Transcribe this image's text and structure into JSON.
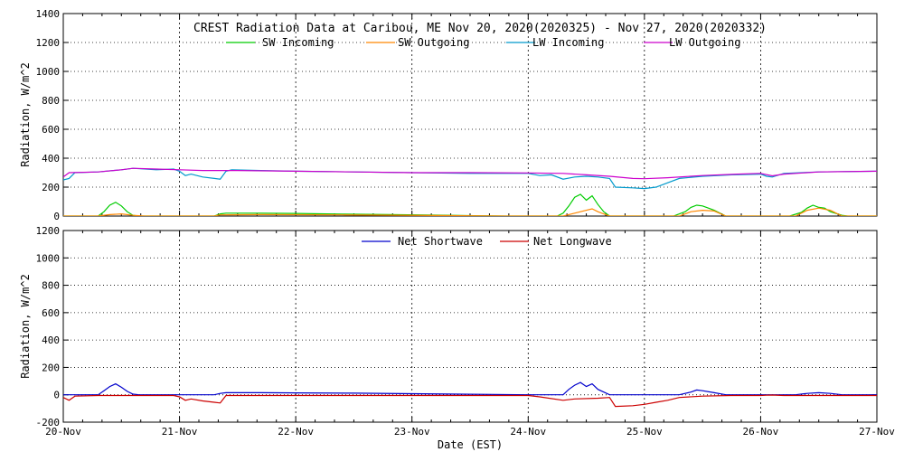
{
  "chart_data": [
    {
      "type": "line",
      "title": "CREST Radiation Data at Caribou, ME   Nov 20, 2020(2020325) - Nov 27, 2020(2020332)",
      "ylabel": "Radiation, W/m^2",
      "xlabel": "",
      "ylim": [
        0,
        1400
      ],
      "yticks": [
        0,
        200,
        400,
        600,
        800,
        1000,
        1200,
        1400
      ],
      "xlim": [
        0,
        7
      ],
      "grid": true,
      "legend": "top",
      "series": [
        {
          "name": "SW Incoming",
          "color": "#00cc00",
          "x": [
            0,
            0.3,
            0.35,
            0.4,
            0.45,
            0.5,
            0.55,
            0.6,
            0.65,
            0.7,
            0.75,
            1.0,
            1.3,
            1.35,
            1.4,
            1.7,
            2.0,
            2.4,
            2.8,
            3.2,
            3.6,
            3.8,
            3.85,
            4.0,
            4.25,
            4.3,
            4.35,
            4.4,
            4.45,
            4.5,
            4.55,
            4.6,
            4.65,
            4.7,
            4.8,
            5.0,
            5.25,
            5.35,
            5.4,
            5.45,
            5.5,
            5.55,
            5.6,
            5.7,
            5.8,
            6.0,
            6.25,
            6.35,
            6.4,
            6.45,
            6.5,
            6.55,
            6.6,
            6.7,
            6.75,
            7.0
          ],
          "y": [
            0,
            0,
            30,
            75,
            95,
            70,
            30,
            5,
            0,
            0,
            0,
            0,
            0,
            15,
            20,
            20,
            18,
            14,
            10,
            6,
            2,
            0,
            0,
            0,
            0,
            20,
            70,
            130,
            150,
            110,
            140,
            80,
            30,
            0,
            0,
            0,
            0,
            30,
            60,
            75,
            70,
            55,
            40,
            0,
            0,
            0,
            0,
            25,
            55,
            75,
            60,
            55,
            30,
            5,
            0,
            0
          ]
        },
        {
          "name": "SW Outgoing",
          "color": "#ff8800",
          "x": [
            0,
            0.3,
            0.4,
            0.5,
            0.6,
            0.7,
            1.3,
            1.35,
            1.7,
            2.4,
            3.2,
            3.8,
            4.3,
            4.4,
            4.5,
            4.55,
            4.6,
            4.7,
            5.3,
            5.4,
            5.5,
            5.6,
            5.7,
            6.3,
            6.4,
            6.5,
            6.6,
            6.7,
            7.0
          ],
          "y": [
            0,
            0,
            10,
            15,
            5,
            0,
            0,
            8,
            10,
            8,
            4,
            0,
            0,
            20,
            40,
            50,
            30,
            0,
            0,
            30,
            40,
            35,
            0,
            0,
            40,
            55,
            40,
            0,
            0
          ]
        },
        {
          "name": "LW Incoming",
          "color": "#0099cc",
          "x": [
            0,
            0.05,
            0.1,
            0.3,
            0.5,
            0.6,
            0.8,
            0.95,
            1.0,
            1.05,
            1.1,
            1.2,
            1.3,
            1.35,
            1.4,
            1.45,
            1.7,
            2.0,
            2.5,
            3.0,
            3.5,
            4.0,
            4.1,
            4.2,
            4.3,
            4.4,
            4.5,
            4.6,
            4.7,
            4.75,
            4.9,
            5.0,
            5.1,
            5.2,
            5.3,
            5.5,
            5.75,
            6.0,
            6.05,
            6.1,
            6.2,
            6.5,
            7.0
          ],
          "y": [
            250,
            260,
            300,
            305,
            320,
            330,
            320,
            325,
            310,
            280,
            290,
            270,
            260,
            255,
            310,
            320,
            315,
            310,
            305,
            300,
            295,
            295,
            280,
            285,
            255,
            270,
            275,
            270,
            260,
            200,
            195,
            190,
            200,
            230,
            260,
            275,
            285,
            290,
            275,
            270,
            295,
            305,
            310
          ]
        },
        {
          "name": "LW Outgoing",
          "color": "#cc00cc",
          "x": [
            0,
            0.05,
            0.3,
            0.5,
            0.6,
            0.8,
            1.0,
            1.2,
            1.5,
            2.0,
            2.5,
            3.0,
            3.5,
            4.0,
            4.3,
            4.5,
            4.7,
            4.9,
            5.0,
            5.2,
            5.5,
            5.8,
            6.0,
            6.1,
            6.2,
            6.5,
            7.0
          ],
          "y": [
            270,
            300,
            305,
            320,
            330,
            325,
            320,
            315,
            315,
            310,
            305,
            300,
            300,
            298,
            295,
            285,
            275,
            260,
            258,
            265,
            280,
            290,
            295,
            278,
            290,
            305,
            310
          ]
        }
      ]
    },
    {
      "type": "line",
      "title": "",
      "ylabel": "Radiation, W/m^2",
      "xlabel": "Date (EST)",
      "ylim": [
        -200,
        1200
      ],
      "yticks": [
        -200,
        0,
        200,
        400,
        600,
        800,
        1000,
        1200
      ],
      "xlim": [
        0,
        7
      ],
      "xticks": [
        "20-Nov",
        "21-Nov",
        "22-Nov",
        "23-Nov",
        "24-Nov",
        "25-Nov",
        "26-Nov",
        "27-Nov"
      ],
      "grid": true,
      "legend": "top",
      "series": [
        {
          "name": "Net Shortwave",
          "color": "#0000cc",
          "x": [
            0,
            0.3,
            0.35,
            0.4,
            0.45,
            0.5,
            0.55,
            0.6,
            0.65,
            0.7,
            1.3,
            1.35,
            1.4,
            1.7,
            2.0,
            2.5,
            3.0,
            3.5,
            4.0,
            4.3,
            4.35,
            4.4,
            4.45,
            4.5,
            4.55,
            4.6,
            4.65,
            4.7,
            5.3,
            5.4,
            5.45,
            5.5,
            5.6,
            5.7,
            6.3,
            6.4,
            6.5,
            6.6,
            6.7,
            7.0
          ],
          "y": [
            0,
            0,
            30,
            60,
            80,
            55,
            25,
            5,
            0,
            0,
            0,
            10,
            15,
            15,
            14,
            12,
            8,
            4,
            0,
            0,
            40,
            70,
            90,
            60,
            80,
            40,
            20,
            0,
            0,
            20,
            35,
            30,
            15,
            0,
            0,
            10,
            15,
            10,
            0,
            0
          ]
        },
        {
          "name": "Net Longwave",
          "color": "#cc0000",
          "x": [
            0,
            0.05,
            0.1,
            0.3,
            0.6,
            0.8,
            0.95,
            1.0,
            1.05,
            1.1,
            1.2,
            1.3,
            1.35,
            1.4,
            1.45,
            1.7,
            2.0,
            2.5,
            3.0,
            3.5,
            4.0,
            4.1,
            4.3,
            4.4,
            4.6,
            4.7,
            4.75,
            4.9,
            5.0,
            5.1,
            5.2,
            5.3,
            5.5,
            5.75,
            6.0,
            6.05,
            6.1,
            6.2,
            6.5,
            7.0
          ],
          "y": [
            -20,
            -40,
            -10,
            -5,
            -5,
            -5,
            -5,
            -15,
            -40,
            -30,
            -45,
            -55,
            -60,
            -5,
            -5,
            -5,
            -5,
            -5,
            -5,
            -5,
            -5,
            -15,
            -40,
            -30,
            -25,
            -20,
            -85,
            -80,
            -70,
            -55,
            -40,
            -20,
            -10,
            -5,
            -5,
            -3,
            -2,
            -5,
            -5,
            -5
          ]
        }
      ]
    }
  ]
}
